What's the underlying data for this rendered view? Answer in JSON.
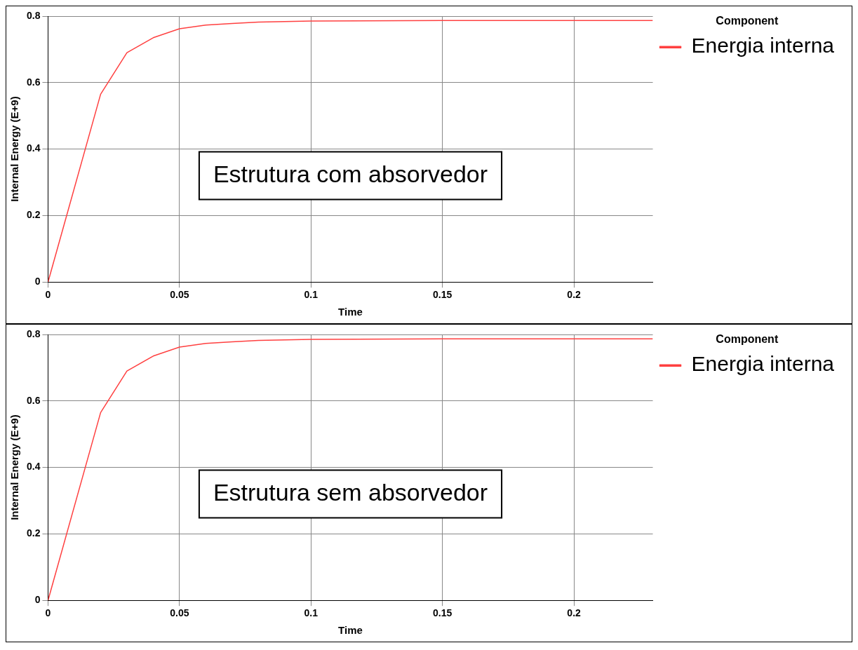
{
  "chart_data": [
    {
      "type": "line",
      "xlabel": "Time",
      "ylabel": "Internal Energy (E+9)",
      "legend_title": "Component",
      "legend": "top right",
      "grid": true,
      "xlim": [
        0,
        0.23
      ],
      "xticks": [
        0,
        0.05,
        0.1,
        0.15,
        0.2
      ],
      "ylim": [
        0,
        0.8
      ],
      "yticks": [
        0,
        0.2,
        0.4,
        0.6,
        0.8
      ],
      "annotations": [
        "Estrutura com absorvedor"
      ],
      "series": [
        {
          "name": "Energia interna",
          "color": "#ff4040",
          "x": [
            0,
            0.02,
            0.03,
            0.04,
            0.05,
            0.06,
            0.07,
            0.08,
            0.1,
            0.15,
            0.23
          ],
          "values": [
            0,
            0.565,
            0.69,
            0.735,
            0.762,
            0.773,
            0.778,
            0.782,
            0.785,
            0.787,
            0.787
          ]
        }
      ]
    },
    {
      "type": "line",
      "xlabel": "Time",
      "ylabel": "Internal Energy (E+9)",
      "legend_title": "Component",
      "legend": "top right",
      "grid": true,
      "xlim": [
        0,
        0.23
      ],
      "xticks": [
        0,
        0.05,
        0.1,
        0.15,
        0.2
      ],
      "ylim": [
        0,
        0.8
      ],
      "yticks": [
        0,
        0.2,
        0.4,
        0.6,
        0.8
      ],
      "annotations": [
        "Estrutura sem absorvedor"
      ],
      "series": [
        {
          "name": "Energia interna",
          "color": "#ff4040",
          "x": [
            0,
            0.02,
            0.03,
            0.04,
            0.05,
            0.06,
            0.07,
            0.08,
            0.1,
            0.15,
            0.23
          ],
          "values": [
            0,
            0.565,
            0.69,
            0.735,
            0.762,
            0.773,
            0.778,
            0.782,
            0.785,
            0.787,
            0.787
          ]
        }
      ]
    }
  ]
}
